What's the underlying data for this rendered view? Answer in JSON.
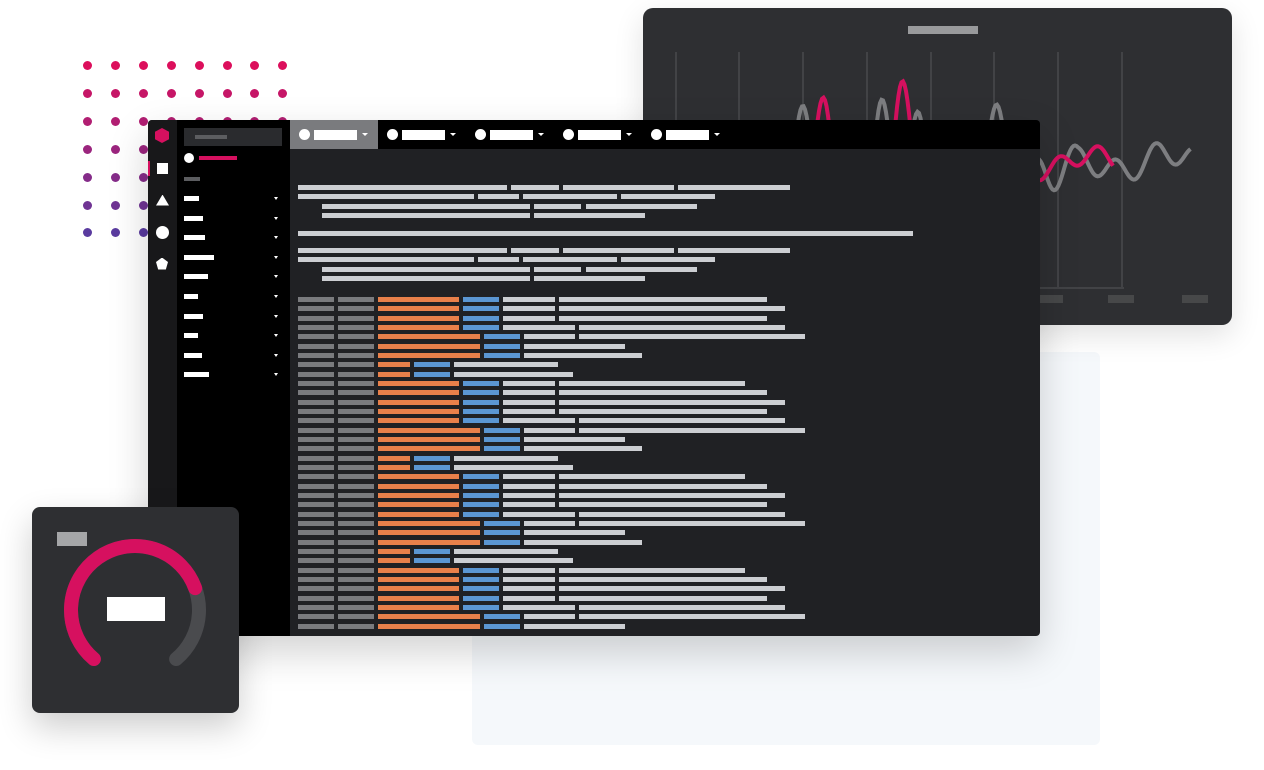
{
  "colors": {
    "accent": "#d6105f",
    "dots_top": "#dc0f5c",
    "dots_bottom": "#5a3b9f",
    "window_bg": "#202124",
    "card_bg": "#2e2f32",
    "text_bar": "#ccced2",
    "muted_bar": "#7a7b7e",
    "field_orange": "#e8804a",
    "field_blue": "#5b96d2",
    "series_gray": "#7d7e81"
  },
  "rail": {
    "logo_icon": "hexagon-logo-icon",
    "icons": [
      "square-icon",
      "triangle-icon",
      "circle-icon",
      "pentagon-icon"
    ],
    "active_index": 0
  },
  "sidebar": {
    "search_placeholder_bar": true,
    "item_count": 10
  },
  "topbar": {
    "tab_count": 5,
    "active_tab": 0
  },
  "gauge": {
    "percent": 75
  }
}
